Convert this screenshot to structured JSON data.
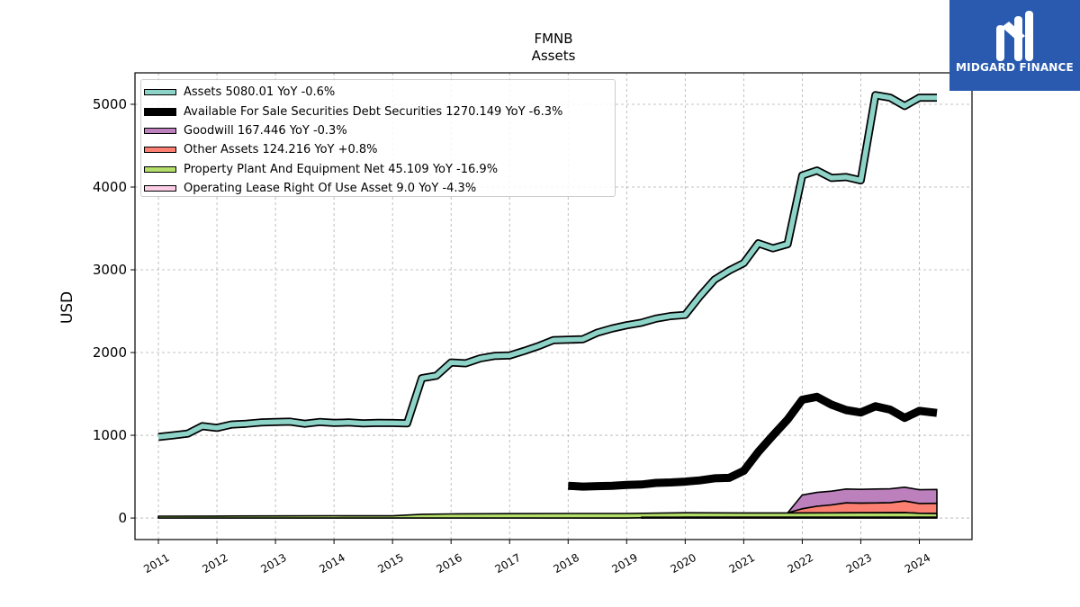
{
  "branding": {
    "logo_text": "MIDGARD FINANCE"
  },
  "chart_data": {
    "type": "area",
    "title": "FMNB",
    "subtitle": "Assets",
    "ylabel": "USD",
    "xlabel": "",
    "xlim": [
      2010.6,
      2024.9
    ],
    "ylim": [
      -260,
      5380
    ],
    "x_ticks": [
      "2011",
      "2012",
      "2013",
      "2014",
      "2015",
      "2016",
      "2017",
      "2018",
      "2019",
      "2020",
      "2021",
      "2022",
      "2023",
      "2024"
    ],
    "y_ticks": [
      "0",
      "1000",
      "2000",
      "3000",
      "4000",
      "5000"
    ],
    "grid": true,
    "legend_position": "upper-left",
    "series": [
      {
        "name": "Assets",
        "legend": "Assets  5080.01 YoY -0.6%",
        "color": "#8dd3c7",
        "style": "band",
        "x": [
          2011.0,
          2011.25,
          2011.5,
          2011.75,
          2012.0,
          2012.25,
          2012.5,
          2012.75,
          2013.0,
          2013.25,
          2013.5,
          2013.75,
          2014.0,
          2014.25,
          2014.5,
          2014.75,
          2015.0,
          2015.25,
          2015.5,
          2015.75,
          2016.0,
          2016.25,
          2016.5,
          2016.75,
          2017.0,
          2017.25,
          2017.5,
          2017.75,
          2018.0,
          2018.25,
          2018.5,
          2018.75,
          2019.0,
          2019.25,
          2019.5,
          2019.75,
          2020.0,
          2020.25,
          2020.5,
          2020.75,
          2021.0,
          2021.25,
          2021.5,
          2021.75,
          2022.0,
          2022.25,
          2022.5,
          2022.75,
          2023.0,
          2023.25,
          2023.5,
          2023.75,
          2024.0,
          2024.3
        ],
        "values": [
          980,
          1000,
          1020,
          1110,
          1090,
          1130,
          1140,
          1155,
          1160,
          1165,
          1140,
          1160,
          1150,
          1155,
          1145,
          1150,
          1148,
          1145,
          1690,
          1720,
          1880,
          1870,
          1930,
          1960,
          1965,
          2020,
          2080,
          2150,
          2155,
          2160,
          2240,
          2290,
          2330,
          2360,
          2410,
          2440,
          2455,
          2680,
          2880,
          2990,
          3080,
          3320,
          3260,
          3310,
          4140,
          4200,
          4110,
          4120,
          4080,
          5110,
          5080,
          4980,
          5080,
          5080
        ]
      },
      {
        "name": "Available For Sale Securities Debt Securities",
        "legend": "Available For Sale Securities Debt Securities  1270.149 YoY -6.3%",
        "color": "#000000",
        "style": "thick",
        "x": [
          2018.0,
          2018.25,
          2018.5,
          2018.75,
          2019.0,
          2019.25,
          2019.5,
          2019.75,
          2020.0,
          2020.25,
          2020.5,
          2020.75,
          2021.0,
          2021.25,
          2021.5,
          2021.75,
          2022.0,
          2022.25,
          2022.5,
          2022.75,
          2023.0,
          2023.25,
          2023.5,
          2023.75,
          2024.0,
          2024.3
        ],
        "values": [
          390,
          380,
          385,
          390,
          400,
          405,
          425,
          430,
          440,
          455,
          480,
          485,
          570,
          800,
          1000,
          1190,
          1430,
          1465,
          1370,
          1305,
          1275,
          1350,
          1310,
          1210,
          1295,
          1270
        ]
      },
      {
        "name": "Goodwill",
        "legend": "Goodwill  167.446 YoY -0.3%",
        "color": "#bc80bd",
        "style": "stack",
        "x": [
          2021.75,
          2022.0,
          2022.25,
          2022.5,
          2022.75,
          2023.0,
          2023.25,
          2023.5,
          2023.75,
          2024.0,
          2024.3
        ],
        "values": [
          0,
          167,
          167,
          167,
          167,
          167,
          168,
          168,
          168,
          167,
          167
        ]
      },
      {
        "name": "Other Assets",
        "legend": "Other Assets  124.216 YoY +0.8%",
        "color": "#fb8072",
        "style": "stack",
        "x": [
          2021.75,
          2022.0,
          2022.25,
          2022.5,
          2022.75,
          2023.0,
          2023.25,
          2023.5,
          2023.75,
          2024.0,
          2024.3
        ],
        "values": [
          0,
          50,
          80,
          95,
          120,
          115,
          118,
          120,
          140,
          118,
          124
        ]
      },
      {
        "name": "Property Plant And Equipment Net",
        "legend": "Property Plant And Equipment Net  45.109 YoY -16.9%",
        "color": "#b3de69",
        "style": "stack",
        "x": [
          2011.0,
          2012.0,
          2013.0,
          2014.0,
          2015.0,
          2015.5,
          2016.0,
          2017.0,
          2018.0,
          2019.0,
          2020.0,
          2021.0,
          2022.0,
          2023.0,
          2023.75,
          2024.0,
          2024.3
        ],
        "values": [
          22,
          24,
          26,
          28,
          27,
          45,
          50,
          53,
          55,
          55,
          54,
          52,
          52,
          54,
          55,
          48,
          45
        ]
      },
      {
        "name": "Operating Lease Right Of Use Asset",
        "legend": "Operating Lease Right Of Use Asset  9.0 YoY -4.3%",
        "color": "#fccde5",
        "style": "stack",
        "x": [
          2019.25,
          2020.0,
          2021.0,
          2022.0,
          2023.0,
          2023.75,
          2024.0,
          2024.3
        ],
        "values": [
          10,
          10,
          10,
          10,
          10,
          10,
          9,
          9
        ]
      }
    ]
  }
}
